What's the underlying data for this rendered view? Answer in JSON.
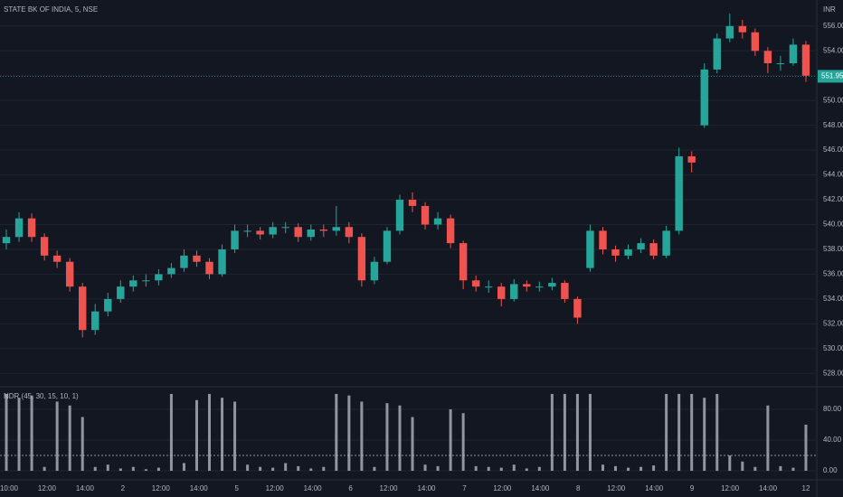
{
  "chart_data": {
    "type": "candlestick",
    "title": "STATE BK OF INDIA, 5, NSE",
    "currency": "INR",
    "up_color": "#26a69a",
    "down_color": "#ef5350",
    "ylim": [
      527,
      558.1
    ],
    "yticks": [
      {
        "value": 528,
        "label": "528.00"
      },
      {
        "value": 530,
        "label": "530.00"
      },
      {
        "value": 532,
        "label": "532.00"
      },
      {
        "value": 534,
        "label": "534.00"
      },
      {
        "value": 536,
        "label": "536.00"
      },
      {
        "value": 538,
        "label": "538.00"
      },
      {
        "value": 540,
        "label": "540.00"
      },
      {
        "value": 542,
        "label": "542.00"
      },
      {
        "value": 544,
        "label": "544.00"
      },
      {
        "value": 546,
        "label": "546.00"
      },
      {
        "value": 548,
        "label": "548.00"
      },
      {
        "value": 550,
        "label": "550.00"
      },
      {
        "value": 552,
        "label": "552.00"
      },
      {
        "value": 554,
        "label": "554.00"
      },
      {
        "value": 556,
        "label": "556.00"
      }
    ],
    "grid": true,
    "last_price": {
      "value": 551.95,
      "label": "551.95",
      "color": "#26a69a"
    },
    "x_labels": [
      "10:00",
      "12:00",
      "14:00",
      "2",
      "12:00",
      "14:00",
      "5",
      "12:00",
      "14:00",
      "6",
      "12:00",
      "14:00",
      "7",
      "12:00",
      "14:00",
      "8",
      "12:00",
      "14:00",
      "9",
      "12:00",
      "14:00",
      "12"
    ],
    "candles": [
      {
        "open": 538.5,
        "high": 539.6,
        "low": 538.0,
        "close": 539
      },
      {
        "open": 539,
        "high": 541,
        "low": 538.6,
        "close": 540.5
      },
      {
        "open": 540.5,
        "high": 540.9,
        "low": 538.6,
        "close": 539
      },
      {
        "open": 539,
        "high": 539.3,
        "low": 537.1,
        "close": 537.5
      },
      {
        "open": 537.5,
        "high": 537.9,
        "low": 536.5,
        "close": 537
      },
      {
        "open": 537,
        "high": 537.3,
        "low": 534.6,
        "close": 535
      },
      {
        "open": 535,
        "high": 535.3,
        "low": 530.9,
        "close": 531.5
      },
      {
        "open": 531.5,
        "high": 533.6,
        "low": 531.1,
        "close": 533
      },
      {
        "open": 533,
        "high": 534.5,
        "low": 532.6,
        "close": 534
      },
      {
        "open": 534,
        "high": 535.5,
        "low": 533.7,
        "close": 535
      },
      {
        "open": 535,
        "high": 535.9,
        "low": 534.6,
        "close": 535.5
      },
      {
        "open": 535.5,
        "high": 536,
        "low": 535,
        "close": 535.5
      },
      {
        "open": 535.5,
        "high": 536.4,
        "low": 535.1,
        "close": 536
      },
      {
        "open": 536,
        "high": 536.9,
        "low": 535.7,
        "close": 536.5
      },
      {
        "open": 536.5,
        "high": 538,
        "low": 536.2,
        "close": 537.5
      },
      {
        "open": 537.5,
        "high": 537.9,
        "low": 536.6,
        "close": 537
      },
      {
        "open": 537,
        "high": 537.3,
        "low": 535.6,
        "close": 536
      },
      {
        "open": 536,
        "high": 538.4,
        "low": 535.8,
        "close": 538
      },
      {
        "open": 538,
        "high": 540,
        "low": 537.7,
        "close": 539.5
      },
      {
        "open": 539.5,
        "high": 540,
        "low": 539,
        "close": 539.5
      },
      {
        "open": 539.5,
        "high": 539.8,
        "low": 538.8,
        "close": 539.2
      },
      {
        "open": 539.2,
        "high": 540.2,
        "low": 538.9,
        "close": 539.8
      },
      {
        "open": 539.8,
        "high": 540.2,
        "low": 539.3,
        "close": 539.8
      },
      {
        "open": 539.8,
        "high": 540.1,
        "low": 538.6,
        "close": 539
      },
      {
        "open": 539,
        "high": 540,
        "low": 538.7,
        "close": 539.6
      },
      {
        "open": 539.6,
        "high": 540,
        "low": 539,
        "close": 539.5
      },
      {
        "open": 539.5,
        "high": 541.5,
        "low": 539.1,
        "close": 539.8
      },
      {
        "open": 539.8,
        "high": 540.2,
        "low": 538.5,
        "close": 539
      },
      {
        "open": 539,
        "high": 539.3,
        "low": 535,
        "close": 535.5
      },
      {
        "open": 535.5,
        "high": 537.4,
        "low": 535.2,
        "close": 537
      },
      {
        "open": 537,
        "high": 539.8,
        "low": 536.8,
        "close": 539.5
      },
      {
        "open": 539.5,
        "high": 542.4,
        "low": 539.2,
        "close": 542
      },
      {
        "open": 542,
        "high": 542.6,
        "low": 541,
        "close": 541.5
      },
      {
        "open": 541.5,
        "high": 541.8,
        "low": 539.6,
        "close": 540
      },
      {
        "open": 540,
        "high": 541,
        "low": 539.6,
        "close": 540.5
      },
      {
        "open": 540.5,
        "high": 540.8,
        "low": 538.1,
        "close": 538.5
      },
      {
        "open": 538.5,
        "high": 538.7,
        "low": 534.8,
        "close": 535.5
      },
      {
        "open": 535.5,
        "high": 535.9,
        "low": 534.6,
        "close": 535
      },
      {
        "open": 535,
        "high": 535.5,
        "low": 534.5,
        "close": 535
      },
      {
        "open": 535,
        "high": 535.3,
        "low": 533.4,
        "close": 534
      },
      {
        "open": 534,
        "high": 535.6,
        "low": 533.8,
        "close": 535.2
      },
      {
        "open": 535.2,
        "high": 535.5,
        "low": 534.6,
        "close": 535
      },
      {
        "open": 535,
        "high": 535.4,
        "low": 534.6,
        "close": 535
      },
      {
        "open": 535,
        "high": 535.7,
        "low": 534.7,
        "close": 535.3
      },
      {
        "open": 535.3,
        "high": 535.5,
        "low": 533.7,
        "close": 534
      },
      {
        "open": 534,
        "high": 534.2,
        "low": 532,
        "close": 532.5
      },
      {
        "open": 536.5,
        "high": 540,
        "low": 536.2,
        "close": 539.5
      },
      {
        "open": 539.5,
        "high": 539.8,
        "low": 537.6,
        "close": 538
      },
      {
        "open": 538,
        "high": 538.3,
        "low": 537,
        "close": 537.5
      },
      {
        "open": 537.5,
        "high": 538.4,
        "low": 537.2,
        "close": 538
      },
      {
        "open": 538,
        "high": 538.9,
        "low": 537.7,
        "close": 538.5
      },
      {
        "open": 538.5,
        "high": 538.8,
        "low": 537.2,
        "close": 537.5
      },
      {
        "open": 537.5,
        "high": 539.9,
        "low": 537.3,
        "close": 539.5
      },
      {
        "open": 539.5,
        "high": 546.2,
        "low": 539.2,
        "close": 545.5
      },
      {
        "open": 545.5,
        "high": 545.9,
        "low": 544.2,
        "close": 545
      },
      {
        "open": 548,
        "high": 553,
        "low": 547.8,
        "close": 552.5
      },
      {
        "open": 552.5,
        "high": 555.4,
        "low": 552.2,
        "close": 555
      },
      {
        "open": 555,
        "high": 557,
        "low": 554.7,
        "close": 556
      },
      {
        "open": 556,
        "high": 556.5,
        "low": 555,
        "close": 555.5
      },
      {
        "open": 555.5,
        "high": 555.8,
        "low": 553.6,
        "close": 554
      },
      {
        "open": 554,
        "high": 554.3,
        "low": 552.2,
        "close": 553
      },
      {
        "open": 553,
        "high": 553.6,
        "low": 552.4,
        "close": 553
      },
      {
        "open": 553,
        "high": 555,
        "low": 552.8,
        "close": 554.5
      },
      {
        "open": 554.5,
        "high": 554.8,
        "low": 551.5,
        "close": 552
      }
    ],
    "indicator": {
      "name": "NDR (45, 30, 15, 10, 1)",
      "color": "#b2b5be",
      "ylim": [
        -10.6,
        107
      ],
      "yticks": [
        {
          "value": 0,
          "label": "0.00"
        },
        {
          "value": 40,
          "label": "40.00"
        },
        {
          "value": 80,
          "label": "80.00"
        }
      ],
      "level": 20,
      "values": [
        100,
        95,
        98,
        5,
        90,
        85,
        70,
        5,
        8,
        3,
        5,
        2,
        4,
        100,
        10,
        92,
        100,
        95,
        90,
        8,
        5,
        4,
        10,
        6,
        3,
        5,
        100,
        98,
        90,
        5,
        88,
        85,
        70,
        8,
        6,
        80,
        75,
        6,
        5,
        4,
        8,
        3,
        5,
        100,
        100,
        100,
        100,
        8,
        6,
        4,
        5,
        7,
        100,
        100,
        100,
        95,
        100,
        20,
        12,
        5,
        85,
        6,
        4,
        60
      ]
    }
  }
}
